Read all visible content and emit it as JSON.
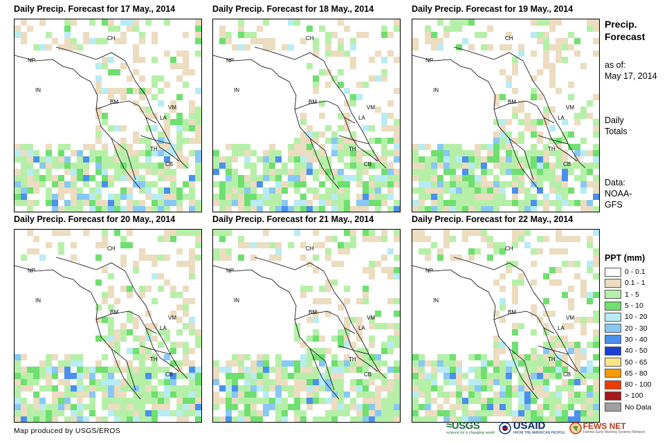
{
  "panels": [
    {
      "title": "Daily Precip. Forecast for 17 May., 2014"
    },
    {
      "title": "Daily Precip. Forecast for 18 May., 2014"
    },
    {
      "title": "Daily Precip. Forecast for 19 May., 2014"
    },
    {
      "title": "Daily Precip. Forecast for 20 May., 2014"
    },
    {
      "title": "Daily Precip. Forecast for 21 May., 2014"
    },
    {
      "title": "Daily Precip. Forecast for 22 May., 2014"
    }
  ],
  "country_labels": [
    "CH",
    "NP",
    "IN",
    "BM",
    "LA",
    "VM",
    "TH",
    "CB"
  ],
  "side_info": {
    "title_line1": "Precip.",
    "title_line2": "Forecast",
    "asof_line1": "as of:",
    "asof_line2": "May 17, 2014",
    "totals_line1": "Daily",
    "totals_line2": "Totals",
    "data_line1": "Data:",
    "data_line2": "NOAA-",
    "data_line3": "GFS"
  },
  "legend": {
    "title": "PPT (mm)",
    "items": [
      {
        "label": "0 - 0.1",
        "color": "#ffffff"
      },
      {
        "label": "0.1 - 1",
        "color": "#ecdcc0"
      },
      {
        "label": "1 - 5",
        "color": "#b6f0a8"
      },
      {
        "label": "5 - 10",
        "color": "#6fe070"
      },
      {
        "label": "10 - 20",
        "color": "#b8ecf4"
      },
      {
        "label": "20 - 30",
        "color": "#88c8f4"
      },
      {
        "label": "30 - 40",
        "color": "#4a90ec"
      },
      {
        "label": "40 - 50",
        "color": "#1a3fd4"
      },
      {
        "label": "50 - 65",
        "color": "#fce584"
      },
      {
        "label": "65 - 80",
        "color": "#fa9a00"
      },
      {
        "label": "80 - 100",
        "color": "#f03a00"
      },
      {
        "label": "> 100",
        "color": "#a81818"
      },
      {
        "label": "No Data",
        "color": "#a0a0a0"
      }
    ]
  },
  "credit": "Map produced by USGS/EROS",
  "logos": {
    "usgs": "≈USGS",
    "usgs_sub": "science for a changing world",
    "usaid": "USAID",
    "usaid_sub": "FROM THE AMERICAN PEOPLE",
    "fews": "FEWS NET",
    "fews_sub": "Famine Early Warning Systems Network"
  }
}
